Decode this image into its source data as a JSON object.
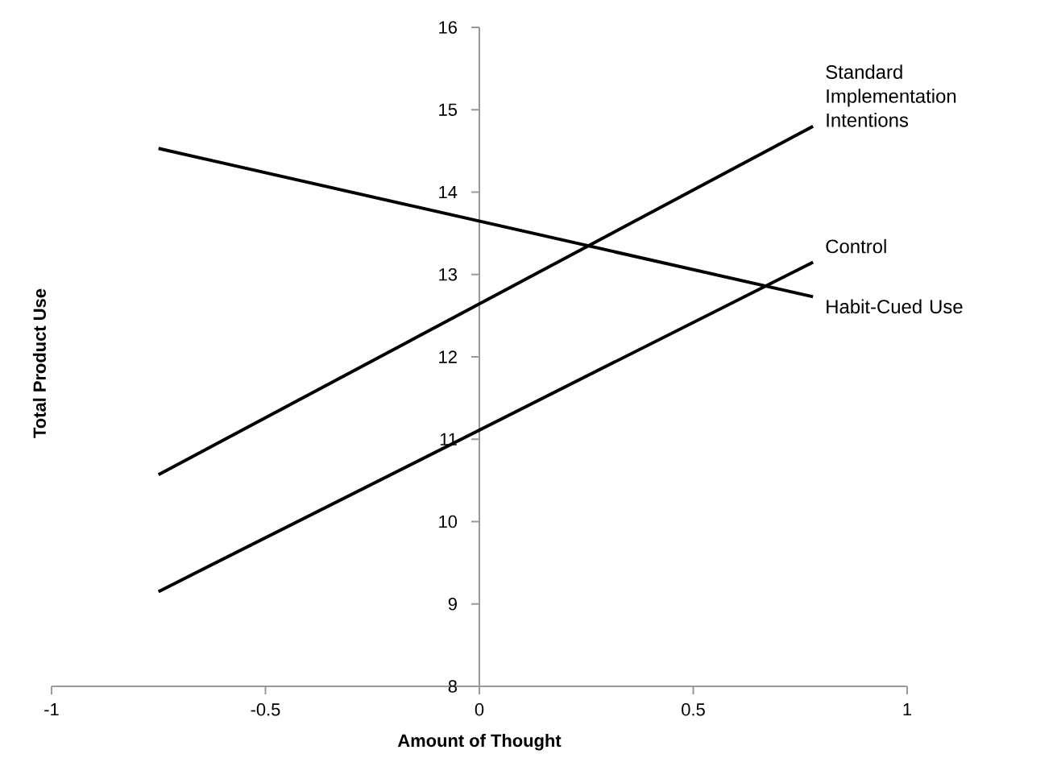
{
  "chart_data": {
    "type": "line",
    "xlabel": "Amount of Thought",
    "ylabel": "Total Product Use",
    "xlim": [
      -1,
      1
    ],
    "ylim": [
      8,
      16
    ],
    "xticks": [
      -1,
      -0.5,
      0,
      0.5,
      1
    ],
    "x": [
      -0.75,
      0.78
    ],
    "yticks": [
      8,
      9,
      10,
      11,
      12,
      13,
      14,
      15,
      16
    ],
    "grid": false,
    "marker": "none",
    "line_style": "solid",
    "series": [
      {
        "name": "Standard Implementation Intentions",
        "color": "#000000",
        "values": [
          10.57,
          14.8
        ]
      },
      {
        "name": "Control",
        "color": "#000000",
        "values": [
          9.15,
          13.15
        ]
      },
      {
        "name": "Habit-Cued Use",
        "color": "#000000",
        "values": [
          14.53,
          12.73
        ]
      }
    ]
  }
}
